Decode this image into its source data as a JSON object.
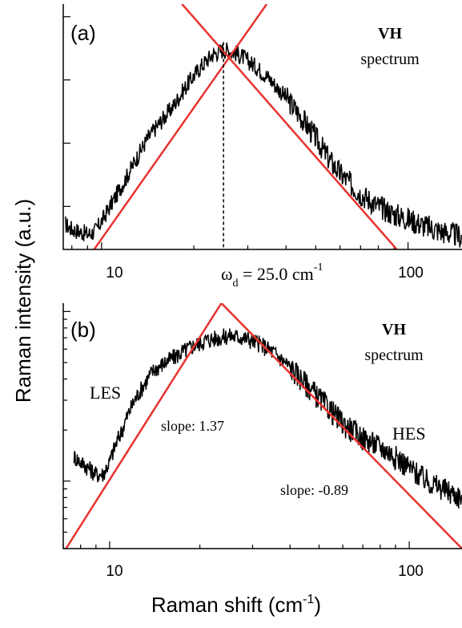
{
  "figure": {
    "ylabel": "Raman intensity (a.u.)",
    "xlabel_main": "Raman shift (cm",
    "xlabel_sup": "-1",
    "xlabel_close": ")"
  },
  "colors": {
    "spectrum": "#000000",
    "fit_line": "#e8332f",
    "axis": "#000000"
  },
  "chart_data": [
    {
      "type": "line",
      "panel": "(a)",
      "x_scale": "log",
      "xlim": [
        7.5,
        150
      ],
      "ylim": [
        0.08,
        1.05
      ],
      "x_ticks": [
        10,
        100
      ],
      "x_tick_labels": [
        "10",
        "100"
      ],
      "y_tick_labels_shown": false,
      "title_bold": "VH",
      "title_sub": "spectrum",
      "annotation": {
        "prefix": "ω",
        "sub": "d",
        "mid": " = 25.0 cm",
        "sup": "-1"
      },
      "omega_d": 25.0,
      "series": [
        {
          "name": "",
          "style": "noisy-line",
          "x": [
            7.6,
            8.0,
            8.5,
            9.0,
            9.5,
            10,
            11,
            12,
            13,
            14,
            15,
            17,
            19,
            21,
            23,
            25,
            27,
            29,
            32,
            35,
            40,
            45,
            50,
            55,
            60,
            70,
            80,
            90,
            100,
            115,
            130,
            150
          ],
          "y": [
            0.18,
            0.16,
            0.15,
            0.14,
            0.15,
            0.19,
            0.28,
            0.36,
            0.44,
            0.51,
            0.56,
            0.64,
            0.73,
            0.8,
            0.85,
            0.87,
            0.86,
            0.84,
            0.8,
            0.76,
            0.68,
            0.6,
            0.52,
            0.44,
            0.38,
            0.3,
            0.25,
            0.22,
            0.2,
            0.17,
            0.15,
            0.13
          ]
        },
        {
          "name": "",
          "style": "fit-line",
          "x": [
            8.5,
            34.6
          ],
          "y": [
            0.0,
            1.05
          ]
        },
        {
          "name": "",
          "style": "fit-line",
          "x": [
            18.3,
            105
          ],
          "y": [
            1.05,
            0.0
          ]
        }
      ]
    },
    {
      "type": "line",
      "panel": "(b)",
      "x_scale": "log",
      "y_scale": "log",
      "xlim": [
        7.0,
        150
      ],
      "ylim": [
        0.04,
        1.12
      ],
      "x_ticks": [
        10,
        100
      ],
      "x_tick_labels": [
        "10",
        "100"
      ],
      "y_tick_labels_shown": false,
      "title_bold": "VH",
      "title_sub": "spectrum",
      "annotations": [
        "LES",
        "slope: 1.37",
        "HES",
        "slope: -0.89"
      ],
      "series": [
        {
          "name": "",
          "style": "noisy-line",
          "x": [
            7.6,
            8.0,
            8.5,
            9.0,
            9.5,
            10,
            11,
            12,
            13,
            14,
            15,
            17,
            19,
            21,
            23,
            25,
            27,
            29,
            32,
            35,
            40,
            45,
            50,
            55,
            60,
            70,
            80,
            90,
            100,
            115,
            130,
            150
          ],
          "y": [
            0.14,
            0.13,
            0.12,
            0.11,
            0.11,
            0.13,
            0.2,
            0.29,
            0.37,
            0.45,
            0.49,
            0.56,
            0.63,
            0.68,
            0.7,
            0.72,
            0.71,
            0.69,
            0.64,
            0.58,
            0.47,
            0.38,
            0.31,
            0.26,
            0.22,
            0.18,
            0.16,
            0.14,
            0.12,
            0.1,
            0.09,
            0.08
          ]
        },
        {
          "name": "",
          "style": "fit-line",
          "x": [
            7.15,
            23.6
          ],
          "y": [
            0.04,
            1.12
          ]
        },
        {
          "name": "",
          "style": "fit-line",
          "x": [
            23.6,
            150
          ],
          "y": [
            1.12,
            0.04
          ]
        }
      ]
    }
  ]
}
